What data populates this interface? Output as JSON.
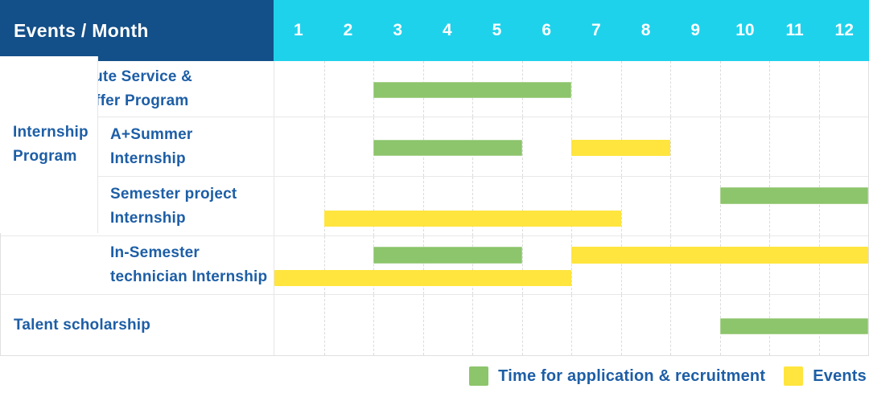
{
  "header": {
    "events_month_label": "Events / Month",
    "months": [
      "1",
      "2",
      "3",
      "4",
      "5",
      "6",
      "7",
      "8",
      "9",
      "10",
      "11",
      "12"
    ]
  },
  "group_label": "Internship\nProgram",
  "rows": [
    {
      "label": "RD Substitute Service &\nAdvance Offer Program",
      "sub": false,
      "bars": [
        {
          "type": "application",
          "start": 3,
          "end": 6,
          "line": "single"
        }
      ]
    },
    {
      "label": "A+Summer\nInternship",
      "sub": true,
      "bars": [
        {
          "type": "application",
          "start": 3,
          "end": 5,
          "line": "single"
        },
        {
          "type": "event",
          "start": 7,
          "end": 8,
          "line": "single"
        }
      ]
    },
    {
      "label": "Semester project\nInternship",
      "sub": true,
      "bars": [
        {
          "type": "application",
          "start": 10,
          "end": 12,
          "line": "top"
        },
        {
          "type": "event",
          "start": 2,
          "end": 7,
          "line": "bottom"
        }
      ]
    },
    {
      "label": "In-Semester\ntechnician Internship",
      "sub": true,
      "bars": [
        {
          "type": "application",
          "start": 3,
          "end": 5,
          "line": "top"
        },
        {
          "type": "event",
          "start": 7,
          "end": 12,
          "line": "top"
        },
        {
          "type": "event",
          "start": 1,
          "end": 6,
          "line": "bottom"
        }
      ]
    },
    {
      "label": "Talent scholarship",
      "sub": false,
      "bars": [
        {
          "type": "application",
          "start": 10,
          "end": 12,
          "line": "single"
        }
      ]
    }
  ],
  "legend": [
    {
      "type": "application",
      "label": "Time for application & recruitment"
    },
    {
      "type": "event",
      "label": "Events"
    }
  ],
  "colors": {
    "header_bg": "#134F88",
    "months_bg": "#1FD2EC",
    "label_text": "#1D5EA6",
    "application_bar": "#8CC56B",
    "event_bar": "#FFE53E"
  },
  "chart_data": {
    "type": "bar",
    "subtype": "gantt",
    "title": "Events / Month",
    "x": {
      "label": "Month",
      "ticks": [
        "1",
        "2",
        "3",
        "4",
        "5",
        "6",
        "7",
        "8",
        "9",
        "10",
        "11",
        "12"
      ],
      "range": [
        1,
        12
      ]
    },
    "grid": "vertical-dashed",
    "legend_position": "bottom-right",
    "series_legend": [
      {
        "name": "Time for application & recruitment",
        "color": "#8CC56B"
      },
      {
        "name": "Events",
        "color": "#FFE53E"
      }
    ],
    "rows": [
      {
        "group": null,
        "category": "RD Substitute Service & Advance Offer Program",
        "spans": [
          {
            "series": "Time for application & recruitment",
            "start_month": 3,
            "end_month": 6
          }
        ]
      },
      {
        "group": "Internship Program",
        "category": "A+Summer Internship",
        "spans": [
          {
            "series": "Time for application & recruitment",
            "start_month": 3,
            "end_month": 5
          },
          {
            "series": "Events",
            "start_month": 7,
            "end_month": 8
          }
        ]
      },
      {
        "group": "Internship Program",
        "category": "Semester project Internship",
        "spans": [
          {
            "series": "Time for application & recruitment",
            "start_month": 10,
            "end_month": 12
          },
          {
            "series": "Events",
            "start_month": 2,
            "end_month": 7
          }
        ]
      },
      {
        "group": "Internship Program",
        "category": "In-Semester technician Internship",
        "spans": [
          {
            "series": "Time for application & recruitment",
            "start_month": 3,
            "end_month": 5
          },
          {
            "series": "Events",
            "start_month": 7,
            "end_month": 12
          },
          {
            "series": "Events",
            "start_month": 1,
            "end_month": 6
          }
        ]
      },
      {
        "group": null,
        "category": "Talent scholarship",
        "spans": [
          {
            "series": "Time for application & recruitment",
            "start_month": 10,
            "end_month": 12
          }
        ]
      }
    ]
  }
}
